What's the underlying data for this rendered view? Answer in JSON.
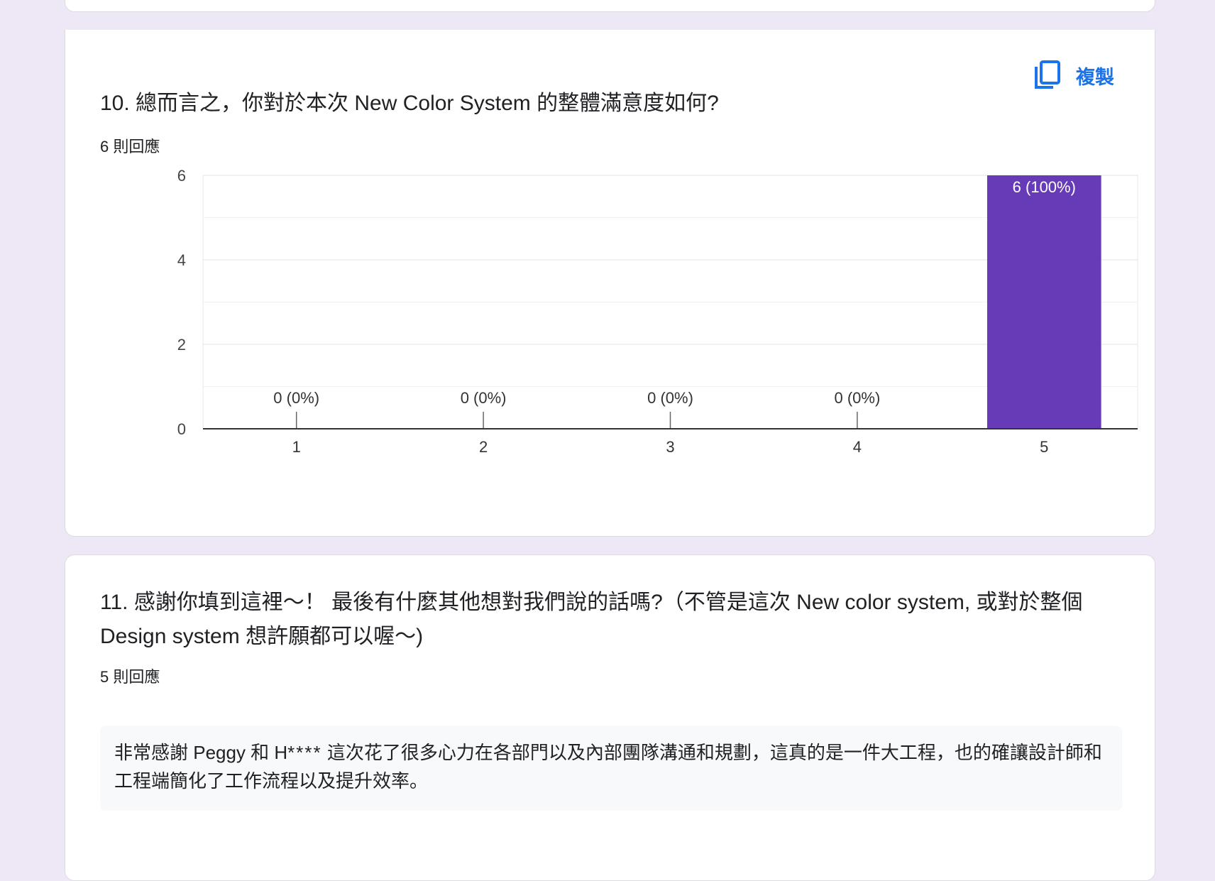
{
  "q10": {
    "title": "10. 總而言之，你對於本次 New Color System 的整體滿意度如何?",
    "response_count": "6 則回應",
    "copy_label": "複製",
    "copy_icon": "copy-icon"
  },
  "chart_data": {
    "type": "bar",
    "categories": [
      "1",
      "2",
      "3",
      "4",
      "5"
    ],
    "values": [
      0,
      0,
      0,
      0,
      6
    ],
    "data_labels": [
      "0 (0%)",
      "0 (0%)",
      "0 (0%)",
      "0 (0%)",
      "6 (100%)"
    ],
    "yticks": [
      0,
      2,
      4,
      6
    ],
    "ylim": [
      0,
      6
    ],
    "grid": true,
    "bar_color": "#673ab7"
  },
  "q11": {
    "title": "11. 感謝你填到這裡～！ 最後有什麼其他想對我們說的話嗎?（不管是這次 New color system, 或對於整個 Design system 想許願都可以喔～)",
    "response_count": "5 則回應",
    "answers": [
      {
        "text_before": "非常感謝 Peggy 和 H",
        "redacted": "****",
        "text_after": " 這次花了很多心力在各部門以及內部團隊溝通和規劃，這真的是一件大工程，也的確讓設計師和工程端簡化了工作流程以及提升效率。"
      }
    ]
  },
  "colors": {
    "background": "#ede7f6",
    "accent": "#1a73e8",
    "bar": "#673ab7"
  }
}
